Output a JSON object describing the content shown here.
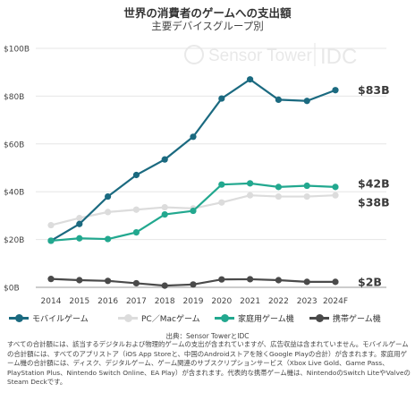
{
  "title": "世界の消費者のゲームへの支出額",
  "subtitle": "主要デバイスグループ別",
  "watermark": "Sensor Tower",
  "watermark2": "IDC",
  "source": "出典：Sensor TowerとIDC",
  "notes": "すべての合計額には、該当するデジタルおよび物理的ゲームの支出が含まれていますが、広告収益は含まれていません。モバイルゲームの合計額には、すべてのアプリストア（iOS App Storeと、中国のAndroidストアを除くGoogle Playの合計）が含まれます。家庭用ゲーム機の合計額には、ディスク、デジタルゲーム、ゲーム関連のサブスクリプションサービス（Xbox Live Gold、Game Pass、PlayStation Plus、Nintendo Switch Online、EA Play）が含まれます。代表的な携帯ゲーム機は、NintendoのSwitch LiteやValveのSteam Deckです。",
  "chart_data": {
    "type": "line",
    "categories": [
      "2014",
      "2015",
      "2016",
      "2017",
      "2018",
      "2019",
      "2020",
      "2021",
      "2022",
      "2023",
      "2024F"
    ],
    "y_ticks": [
      "$0B",
      "$20B",
      "$40B",
      "$60B",
      "$80B",
      "$100B"
    ],
    "ylim": [
      0,
      100
    ],
    "series": [
      {
        "name": "モバイルゲーム",
        "color": "#1b6a80",
        "values": [
          19.5,
          26.5,
          38,
          47,
          53.5,
          63,
          79,
          87,
          78.5,
          78,
          82.5
        ],
        "end_label": "$83B"
      },
      {
        "name": "PC／Macゲーム",
        "color": "#dcdcdc",
        "values": [
          26,
          29,
          31.5,
          32.5,
          33.5,
          33,
          35.5,
          38.5,
          38,
          38,
          38.5
        ],
        "end_label": "$38B"
      },
      {
        "name": "家庭用ゲーム機",
        "color": "#22a88f",
        "values": [
          19.5,
          20.5,
          20.2,
          23,
          30.5,
          32,
          43,
          43.5,
          42,
          42.5,
          42
        ],
        "end_label": "$42B"
      },
      {
        "name": "携帯ゲーム機",
        "color": "#4a4a4a",
        "values": [
          3.5,
          3,
          2.7,
          1.7,
          0.7,
          1.2,
          3.3,
          3.4,
          3,
          2.3,
          2.3
        ],
        "end_label": "$2B"
      }
    ],
    "legend_position": "bottom",
    "grid": "horizontal"
  }
}
